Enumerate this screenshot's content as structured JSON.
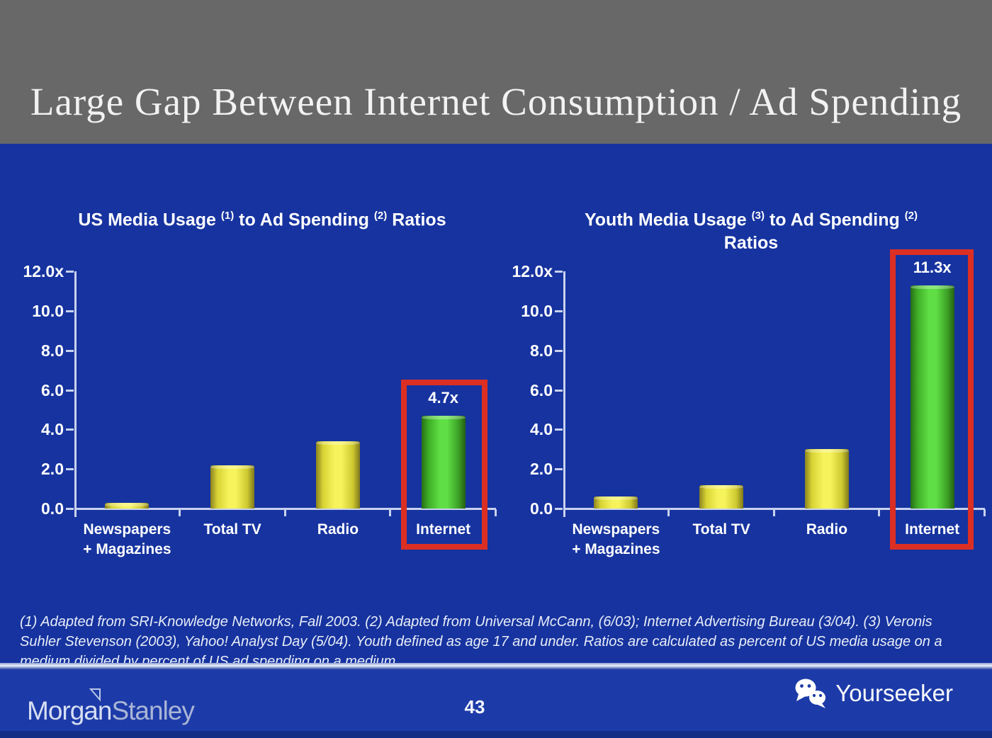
{
  "header": {
    "title": "Large Gap Between Internet Consumption / Ad Spending"
  },
  "chart_data": [
    {
      "type": "bar",
      "title": {
        "p1": "US Media Usage",
        "s1": "(1)",
        "p2": "to Ad Spending",
        "s2": "(2)",
        "p3": "Ratios"
      },
      "categories": [
        "Newspapers\n+ Magazines",
        "Total TV",
        "Radio",
        "Internet"
      ],
      "values": [
        0.3,
        2.2,
        3.4,
        4.7
      ],
      "bar_colors": [
        "yellow",
        "yellow",
        "yellow",
        "green"
      ],
      "highlight_index": 3,
      "highlight_label": "4.7x",
      "ylim": [
        0,
        12
      ],
      "ytick_labels": [
        "12.0x",
        "10.0",
        "8.0",
        "6.0",
        "4.0",
        "2.0",
        "0.0"
      ],
      "ytick_values": [
        12,
        10,
        8,
        6,
        4,
        2,
        0
      ],
      "grid": false,
      "legend_position": "none"
    },
    {
      "type": "bar",
      "title": {
        "p1": "Youth Media Usage",
        "s1": "(3)",
        "p2": "to Ad Spending",
        "s2": "(2)",
        "p3": "Ratios"
      },
      "categories": [
        "Newspapers\n+ Magazines",
        "Total TV",
        "Radio",
        "Internet"
      ],
      "values": [
        0.6,
        1.2,
        3.0,
        11.3
      ],
      "bar_colors": [
        "yellow",
        "yellow",
        "yellow",
        "green"
      ],
      "highlight_index": 3,
      "highlight_label": "11.3x",
      "ylim": [
        0,
        12
      ],
      "ytick_labels": [
        "12.0x",
        "10.0",
        "8.0",
        "6.0",
        "4.0",
        "2.0",
        "0.0"
      ],
      "ytick_values": [
        12,
        10,
        8,
        6,
        4,
        2,
        0
      ],
      "grid": false,
      "legend_position": "none"
    }
  ],
  "footnote": {
    "text": "(1) Adapted from SRI-Knowledge Networks, Fall 2003.  (2) Adapted from Universal McCann, (6/03); Internet Advertising Bureau (3/04). (3) Veronis Suhler Stevenson (2003), Yahoo! Analyst Day (5/04).  Youth defined as age 17 and under.  Ratios are calculated as percent of US media usage on a medium divided by percent of US ad spending on a medium."
  },
  "footer": {
    "brand_morgan": "Morgan",
    "brand_stanley": "Stanley",
    "page_number": "43",
    "watermark_label": "Yourseeker"
  },
  "colors": {
    "header_gray": "#686868",
    "background_blue": "#16339f",
    "footer_blue": "#1d3ba8",
    "bar_yellow": "#f6f35c",
    "bar_green": "#5fdf45",
    "highlight_red": "#dc2f23",
    "axis": "#c9d2ee",
    "text": "#ffffff"
  }
}
